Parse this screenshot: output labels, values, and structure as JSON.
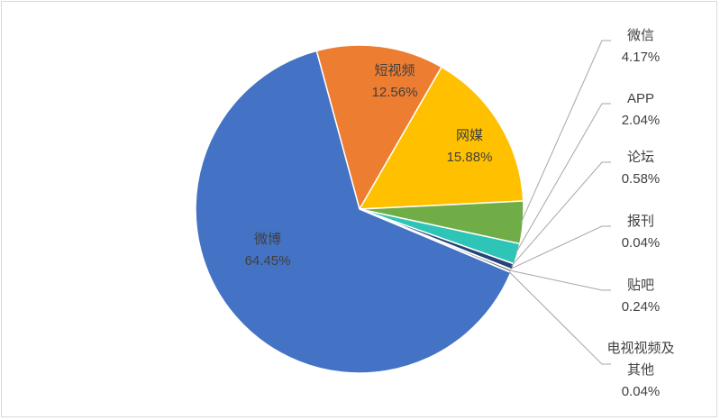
{
  "chart_data": {
    "type": "pie",
    "title": "",
    "slices": [
      {
        "label": "短视频",
        "value": 12.56,
        "display": "12.56%",
        "color": "#ED7D31"
      },
      {
        "label": "网媒",
        "value": 15.88,
        "display": "15.88%",
        "color": "#FFC000"
      },
      {
        "label": "微信",
        "value": 4.17,
        "display": "4.17%",
        "color": "#70AD47"
      },
      {
        "label": "APP",
        "value": 2.04,
        "display": "2.04%",
        "color": "#2EC4B6"
      },
      {
        "label": "论坛",
        "value": 0.58,
        "display": "0.58%",
        "color": "#264478"
      },
      {
        "label": "报刊",
        "value": 0.04,
        "display": "0.04%",
        "color": "#9E480E"
      },
      {
        "label": "贴吧",
        "value": 0.24,
        "display": "0.24%",
        "color": "#636363"
      },
      {
        "label": "电视视频及其他",
        "label_lines": [
          "电视视频及",
          "其他"
        ],
        "value": 0.04,
        "display": "0.04%",
        "color": "#997300"
      },
      {
        "label": "微博",
        "value": 64.45,
        "display": "64.45%",
        "color": "#4472C4"
      }
    ],
    "legend": "none",
    "start_angle_deg": -15.2,
    "direction": "clockwise"
  }
}
